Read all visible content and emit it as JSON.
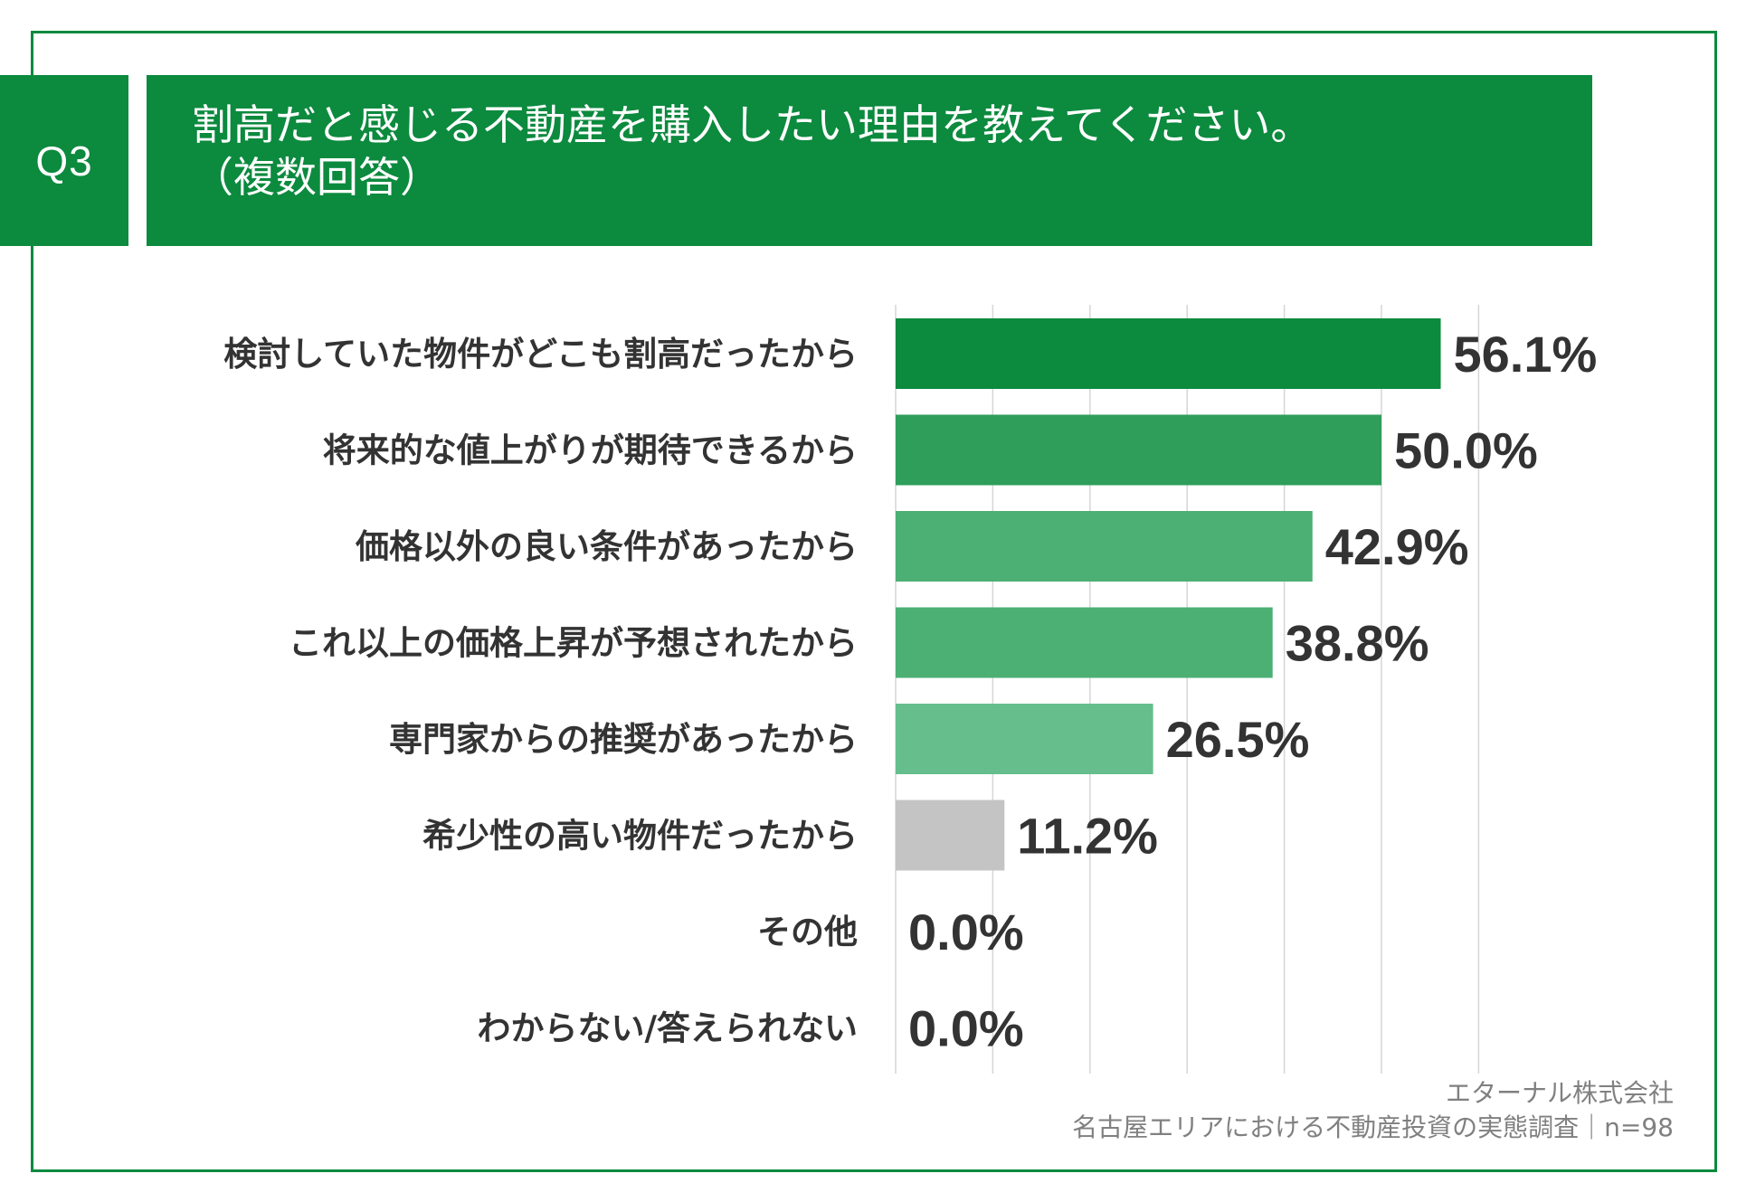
{
  "question": {
    "number": "Q3",
    "title_line1": "割高だと感じる不動産を購入したい理由を教えてください。",
    "title_line2": "（複数回答）"
  },
  "colors": {
    "brand": "#0c8a3e",
    "bars": [
      "#0c8a3e",
      "#2e9e5a",
      "#4caf74",
      "#4caf74",
      "#66be8d",
      "#c4c4c4",
      "#c4c4c4",
      "#c4c4c4"
    ],
    "grid": "#d6d6d6"
  },
  "chart_data": {
    "type": "bar",
    "orientation": "horizontal",
    "categories": [
      "検討していた物件がどこも割高だったから",
      "将来的な値上がりが期待できるから",
      "価格以外の良い条件があったから",
      "これ以上の価格上昇が予想されたから",
      "専門家からの推奨があったから",
      "希少性の高い物件だったから",
      "その他",
      "わからない/答えられない"
    ],
    "values": [
      56.1,
      50.0,
      42.9,
      38.8,
      26.5,
      11.2,
      0.0,
      0.0
    ],
    "value_labels": [
      "56.1%",
      "50.0%",
      "42.9%",
      "38.8%",
      "26.5%",
      "11.2%",
      "0.0%",
      "0.0%"
    ],
    "xlim": [
      0,
      60
    ],
    "grid": true,
    "gridline_step": 10
  },
  "footer": {
    "company": "エターナル株式会社",
    "survey": "名古屋エリアにおける不動産投資の実態調査｜n=98"
  }
}
